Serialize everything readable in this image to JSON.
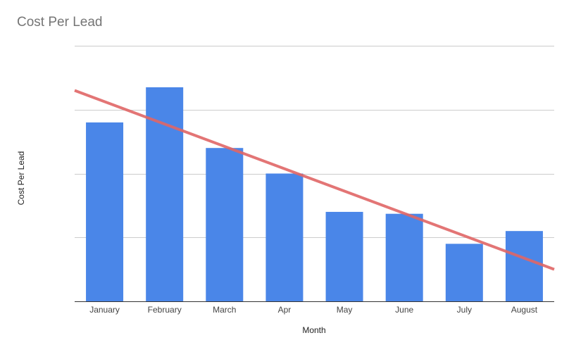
{
  "chart_data": {
    "type": "bar",
    "title": "Cost Per Lead",
    "xlabel": "Month",
    "ylabel": "Cost Per Lead",
    "categories": [
      "January",
      "February",
      "March",
      "Apr",
      "May",
      "June",
      "July",
      "August"
    ],
    "values": [
      2.8,
      3.35,
      2.4,
      2.0,
      1.4,
      1.37,
      0.9,
      1.1
    ],
    "ylim": [
      0,
      4
    ],
    "grid": true,
    "legend": "none",
    "trendline": {
      "type": "linear",
      "start": 3.3,
      "end": 0.5
    },
    "colors": {
      "bar": "#4a86e8",
      "trendline": "#e06666",
      "grid": "#cccccc",
      "axis": "#333333",
      "title": "#757575"
    }
  }
}
